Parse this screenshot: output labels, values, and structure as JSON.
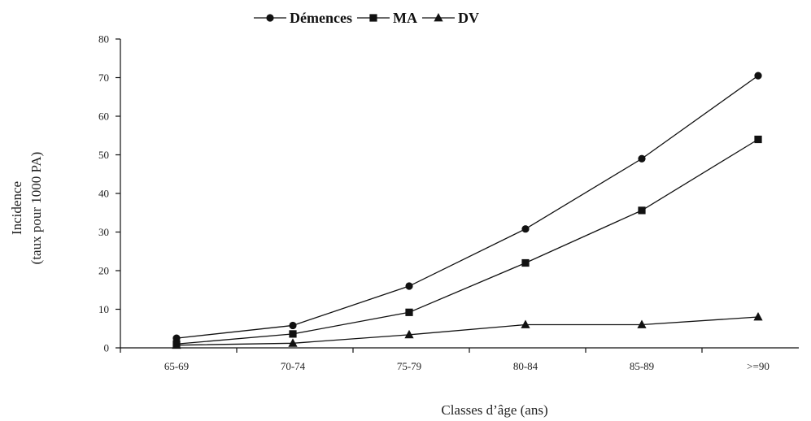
{
  "chart_data": {
    "type": "line",
    "categories": [
      "65-69",
      "70-74",
      "75-79",
      "80-84",
      "85-89",
      ">=90"
    ],
    "series": [
      {
        "name": "Démences",
        "marker": "circle",
        "values": [
          2.5,
          5.8,
          16.0,
          30.8,
          49.0,
          70.5
        ]
      },
      {
        "name": "MA",
        "marker": "square",
        "values": [
          1.0,
          3.6,
          9.2,
          22.0,
          35.6,
          54.0
        ]
      },
      {
        "name": "DV",
        "marker": "triangle",
        "values": [
          0.7,
          1.2,
          3.4,
          6.0,
          6.0,
          8.0
        ]
      }
    ],
    "xlabel": "Classes d’âge (ans)",
    "ylabel_line1": "Incidence",
    "ylabel_line2": "(taux pour 1000 PA)",
    "ylim": [
      0,
      80
    ],
    "yticks": [
      0,
      10,
      20,
      30,
      40,
      50,
      60,
      70,
      80
    ],
    "grid": false,
    "legend_position": "top-center",
    "line_color": "#111111"
  }
}
